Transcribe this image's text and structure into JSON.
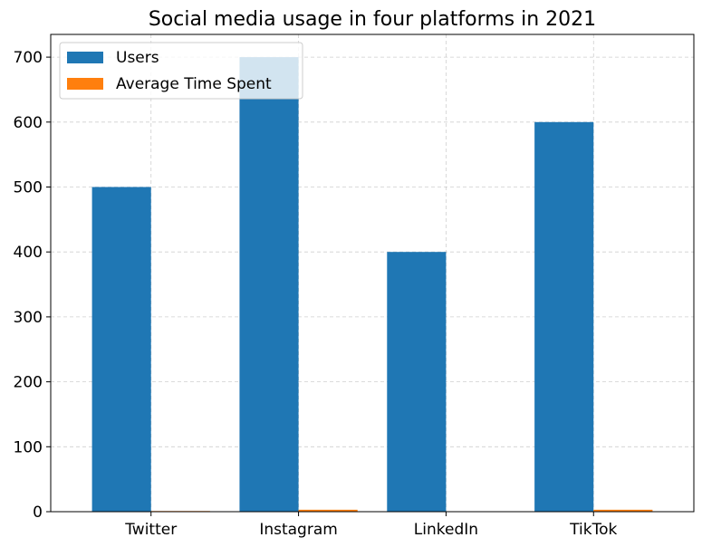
{
  "chart_data": {
    "type": "bar",
    "title": "Social media usage in four platforms in 2021",
    "xlabel": "",
    "ylabel": "",
    "categories": [
      "Twitter",
      "Instagram",
      "LinkedIn",
      "TikTok"
    ],
    "series": [
      {
        "name": "Users",
        "values": [
          500,
          700,
          400,
          600
        ],
        "color": "#1f77b4"
      },
      {
        "name": "Average Time Spent",
        "values": [
          1,
          3,
          0.5,
          3
        ],
        "color": "#ff7f0e"
      }
    ],
    "ylim": [
      0,
      735
    ],
    "yticks": [
      0,
      100,
      200,
      300,
      400,
      500,
      600,
      700
    ],
    "grid": true,
    "legend_position": "top-left"
  }
}
